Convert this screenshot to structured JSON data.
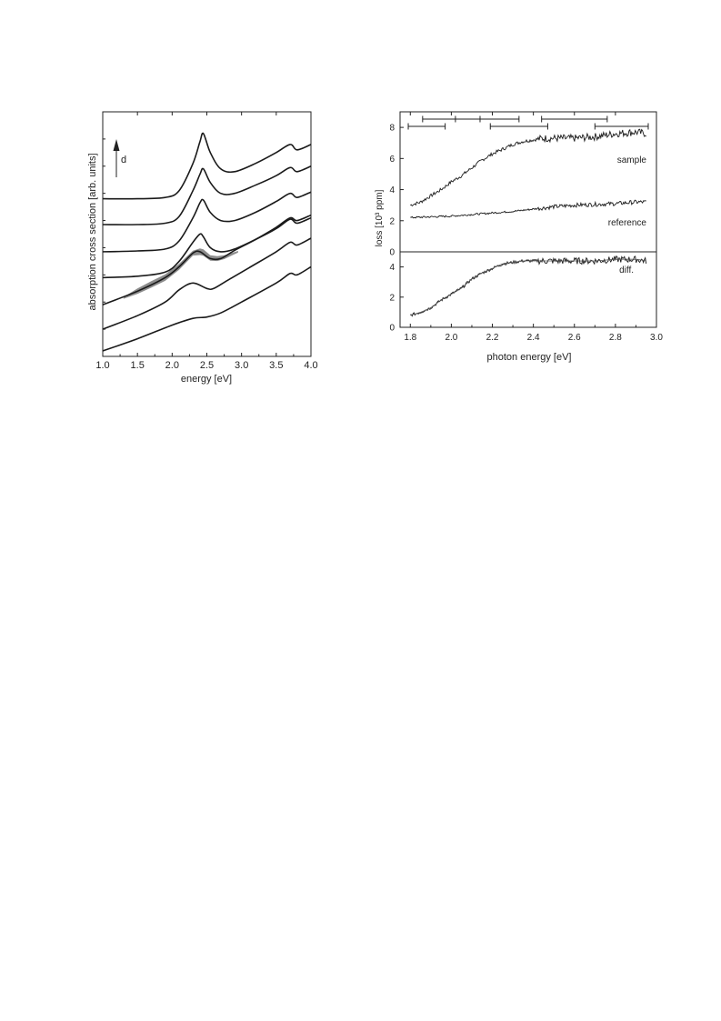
{
  "chart_data": [
    {
      "type": "line",
      "xlabel": "energy [eV]",
      "ylabel": "absorption cross section [arb. units]",
      "xlim": [
        1.0,
        4.0
      ],
      "x_ticks": [
        "1.0",
        "1.5",
        "2.0",
        "2.5",
        "3.0",
        "3.5",
        "4.0"
      ],
      "y_ticks": [],
      "grid": false,
      "arrow_label": "d",
      "series": [
        {
          "x": [
            1.0,
            1.5,
            1.9,
            2.1,
            2.3,
            2.4,
            2.45,
            2.55,
            2.7,
            2.9,
            3.2,
            3.5,
            3.7,
            3.8,
            4.0
          ],
          "y": [
            5.8,
            5.8,
            5.85,
            6.1,
            7.1,
            7.9,
            8.2,
            7.5,
            6.9,
            6.8,
            7.1,
            7.5,
            7.8,
            7.6,
            7.8
          ]
        },
        {
          "x": [
            1.0,
            1.5,
            1.9,
            2.1,
            2.3,
            2.4,
            2.45,
            2.55,
            2.7,
            2.9,
            3.2,
            3.5,
            3.7,
            3.8,
            4.0
          ],
          "y": [
            4.85,
            4.85,
            4.9,
            5.15,
            6.1,
            6.7,
            6.9,
            6.4,
            6.0,
            6.0,
            6.3,
            6.65,
            6.95,
            6.8,
            7.0
          ]
        },
        {
          "x": [
            1.0,
            1.5,
            1.9,
            2.1,
            2.3,
            2.4,
            2.45,
            2.55,
            2.7,
            2.9,
            3.2,
            3.5,
            3.7,
            3.8,
            4.0
          ],
          "y": [
            3.85,
            3.88,
            3.95,
            4.25,
            5.1,
            5.65,
            5.75,
            5.3,
            5.0,
            5.0,
            5.3,
            5.7,
            6.0,
            5.85,
            6.05
          ]
        },
        {
          "x": [
            1.0,
            1.5,
            1.9,
            2.1,
            2.3,
            2.4,
            2.45,
            2.55,
            2.7,
            2.9,
            3.2,
            3.5,
            3.7,
            3.8,
            4.0
          ],
          "y": [
            2.9,
            2.95,
            3.1,
            3.5,
            4.2,
            4.5,
            4.4,
            4.0,
            3.85,
            3.95,
            4.3,
            4.7,
            5.05,
            4.9,
            5.1
          ]
        },
        {
          "x": [
            1.0,
            1.5,
            1.9,
            2.1,
            2.3,
            2.4,
            2.55,
            2.7,
            2.9,
            3.2,
            3.5,
            3.7,
            3.8,
            4.0
          ],
          "y": [
            1.9,
            2.4,
            2.9,
            3.3,
            3.8,
            3.85,
            3.6,
            3.6,
            3.9,
            4.3,
            4.75,
            5.1,
            5.0,
            5.2
          ]
        },
        {
          "x": [
            1.0,
            1.5,
            1.9,
            2.1,
            2.3,
            2.5,
            2.6,
            2.8,
            3.1,
            3.5,
            3.7,
            3.8,
            4.0
          ],
          "y": [
            1.0,
            1.5,
            2.0,
            2.45,
            2.7,
            2.5,
            2.5,
            2.8,
            3.25,
            3.85,
            4.2,
            4.1,
            4.35
          ]
        },
        {
          "x": [
            1.0,
            1.5,
            2.0,
            2.3,
            2.5,
            2.7,
            3.0,
            3.5,
            3.7,
            3.8,
            4.0
          ],
          "y": [
            0.2,
            0.65,
            1.15,
            1.4,
            1.45,
            1.6,
            2.0,
            2.7,
            3.05,
            3.0,
            3.3
          ]
        }
      ],
      "band": {
        "x": [
          1.3,
          1.5,
          1.7,
          1.9,
          2.1,
          2.2,
          2.3,
          2.4,
          2.45,
          2.55,
          2.65,
          2.75,
          2.85,
          2.95
        ],
        "y": [
          2.15,
          2.4,
          2.65,
          2.9,
          3.3,
          3.55,
          3.8,
          3.85,
          3.82,
          3.62,
          3.6,
          3.65,
          3.75,
          3.85
        ],
        "width": [
          0.03,
          0.1,
          0.12,
          0.12,
          0.11,
          0.1,
          0.09,
          0.12,
          0.12,
          0.1,
          0.09,
          0.07,
          0.05,
          0.03
        ]
      }
    },
    {
      "type": "line",
      "xlabel": "photon energy [eV]",
      "ylabel": "loss [10³ ppm]",
      "xlim": [
        1.75,
        3.0
      ],
      "x_ticks": [
        "1.8",
        "2.0",
        "2.2",
        "2.4",
        "2.6",
        "2.8",
        "3.0"
      ],
      "grid": false,
      "upper": {
        "ylim": [
          0,
          9
        ],
        "y_ticks": [
          "0",
          "2",
          "4",
          "6",
          "8"
        ],
        "series": [
          {
            "name": "sample",
            "x": [
              1.8,
              1.85,
              1.9,
              1.95,
              2.0,
              2.05,
              2.1,
              2.15,
              2.2,
              2.25,
              2.3,
              2.35,
              2.4,
              2.45,
              2.5,
              2.6,
              2.7,
              2.8,
              2.9,
              2.95
            ],
            "y": [
              3.0,
              3.2,
              3.6,
              4.0,
              4.5,
              4.9,
              5.4,
              5.9,
              6.3,
              6.6,
              6.9,
              7.1,
              7.2,
              7.3,
              7.3,
              7.3,
              7.4,
              7.6,
              7.7,
              7.6
            ]
          },
          {
            "name": "reference",
            "x": [
              1.8,
              1.9,
              2.0,
              2.1,
              2.2,
              2.3,
              2.4,
              2.5,
              2.6,
              2.7,
              2.8,
              2.9,
              2.95
            ],
            "y": [
              2.2,
              2.25,
              2.3,
              2.4,
              2.5,
              2.6,
              2.75,
              2.9,
              3.0,
              3.05,
              3.1,
              3.2,
              3.2
            ]
          }
        ],
        "intervals": [
          [
            1.86,
            2.14
          ],
          [
            1.79,
            1.97
          ],
          [
            2.02,
            2.33
          ],
          [
            2.19,
            2.47
          ],
          [
            2.44,
            2.76
          ],
          [
            2.7,
            2.96
          ]
        ]
      },
      "lower": {
        "ylim": [
          0,
          5
        ],
        "y_ticks": [
          "0",
          "2",
          "4"
        ],
        "series": [
          {
            "name": "diff.",
            "x": [
              1.8,
              1.85,
              1.9,
              1.95,
              2.0,
              2.05,
              2.1,
              2.15,
              2.2,
              2.25,
              2.3,
              2.35,
              2.4,
              2.5,
              2.6,
              2.7,
              2.8,
              2.9,
              2.95
            ],
            "y": [
              0.8,
              1.0,
              1.3,
              1.8,
              2.2,
              2.6,
              3.2,
              3.6,
              3.9,
              4.2,
              4.3,
              4.4,
              4.4,
              4.4,
              4.4,
              4.4,
              4.5,
              4.5,
              4.4
            ]
          }
        ]
      }
    }
  ]
}
